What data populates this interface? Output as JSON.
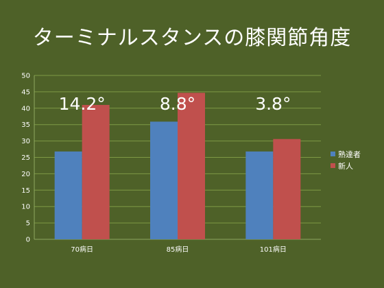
{
  "slide": {
    "background": "#4e6128"
  },
  "chart_data": {
    "type": "bar",
    "title": "ターミナルスタンスの膝関節角度",
    "categories": [
      "70病日",
      "85病日",
      "101病日"
    ],
    "series": [
      {
        "name": "熟達者",
        "color": "#4f81bd",
        "values": [
          26.8,
          35.9,
          26.8
        ]
      },
      {
        "name": "新人",
        "color": "#c0504d",
        "values": [
          41.0,
          44.7,
          30.6
        ]
      }
    ],
    "annotations": [
      "14.2°",
      "8.8°",
      "3.8°"
    ],
    "ylim": [
      0,
      50
    ],
    "yticks": [
      0,
      5,
      10,
      15,
      20,
      25,
      30,
      35,
      40,
      45,
      50
    ],
    "grid": true,
    "legend": "right",
    "xlabel": "",
    "ylabel": ""
  }
}
